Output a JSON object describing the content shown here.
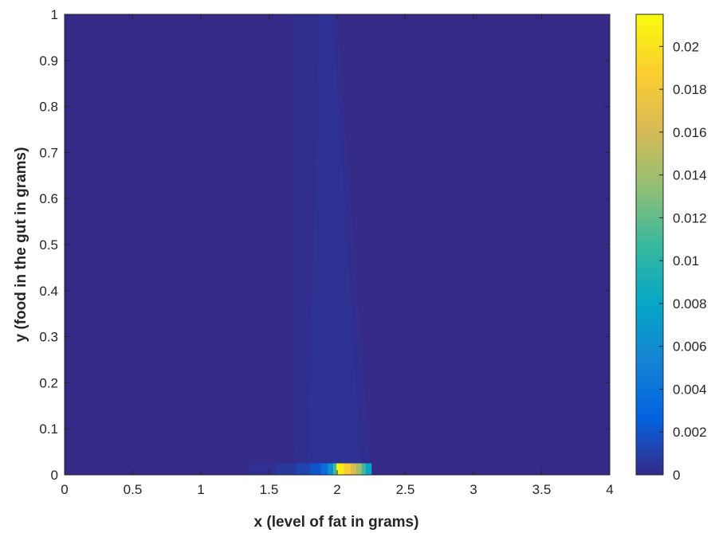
{
  "chart_data": {
    "type": "heatmap",
    "title": "",
    "xlabel": "x (level of fat in grams)",
    "ylabel": "y (food in the gut in grams)",
    "xlim": [
      0,
      4
    ],
    "ylim": [
      0,
      1
    ],
    "x_ticks": [
      "0",
      "0.5",
      "1",
      "1.5",
      "2",
      "2.5",
      "3",
      "3.5",
      "4"
    ],
    "y_ticks": [
      "0",
      "0.1",
      "0.2",
      "0.3",
      "0.4",
      "0.5",
      "0.6",
      "0.7",
      "0.8",
      "0.9",
      "1"
    ],
    "colorbar": {
      "colormap": "parula",
      "range": [
        0,
        0.0215
      ],
      "ticks": [
        "0",
        "0.002",
        "0.004",
        "0.006",
        "0.008",
        "0.01",
        "0.012",
        "0.014",
        "0.016",
        "0.018",
        "0.02"
      ],
      "colors": [
        "#352a87",
        "#0363e1",
        "#1485d4",
        "#06a7c6",
        "#38b99e",
        "#92bf73",
        "#d9ba56",
        "#fcce2e",
        "#f9fb0e"
      ]
    },
    "background_value": 0,
    "band": {
      "description_value": 0.0004,
      "edge_value": 0.0002,
      "left_edge": [
        [
          1.68,
          0
        ],
        [
          1.67,
          1
        ]
      ],
      "core_left": [
        [
          1.78,
          0
        ],
        [
          1.87,
          1
        ]
      ],
      "core_right": [
        [
          2.18,
          0
        ],
        [
          1.97,
          1
        ]
      ],
      "right_edge": [
        [
          2.25,
          0
        ],
        [
          2.0,
          1
        ]
      ]
    },
    "hotspot_strip": {
      "y_range": [
        0,
        0.025
      ],
      "cells": [
        {
          "x0": 1.35,
          "x1": 1.55,
          "value": 0.0003
        },
        {
          "x0": 1.55,
          "x1": 1.7,
          "value": 0.0007
        },
        {
          "x0": 1.7,
          "x1": 1.8,
          "value": 0.0012
        },
        {
          "x0": 1.8,
          "x1": 1.88,
          "value": 0.002
        },
        {
          "x0": 1.88,
          "x1": 1.93,
          "value": 0.0035
        },
        {
          "x0": 1.93,
          "x1": 1.97,
          "value": 0.006
        },
        {
          "x0": 1.97,
          "x1": 1.995,
          "value": 0.011
        },
        {
          "x0": 1.995,
          "x1": 2.01,
          "value": 0.0215
        },
        {
          "x0": 2.01,
          "x1": 2.05,
          "value": 0.0205
        },
        {
          "x0": 2.05,
          "x1": 2.1,
          "value": 0.0185
        },
        {
          "x0": 2.1,
          "x1": 2.14,
          "value": 0.0165
        },
        {
          "x0": 2.14,
          "x1": 2.18,
          "value": 0.014
        },
        {
          "x0": 2.18,
          "x1": 2.21,
          "value": 0.011
        },
        {
          "x0": 2.21,
          "x1": 2.25,
          "value": 0.008
        }
      ]
    }
  }
}
